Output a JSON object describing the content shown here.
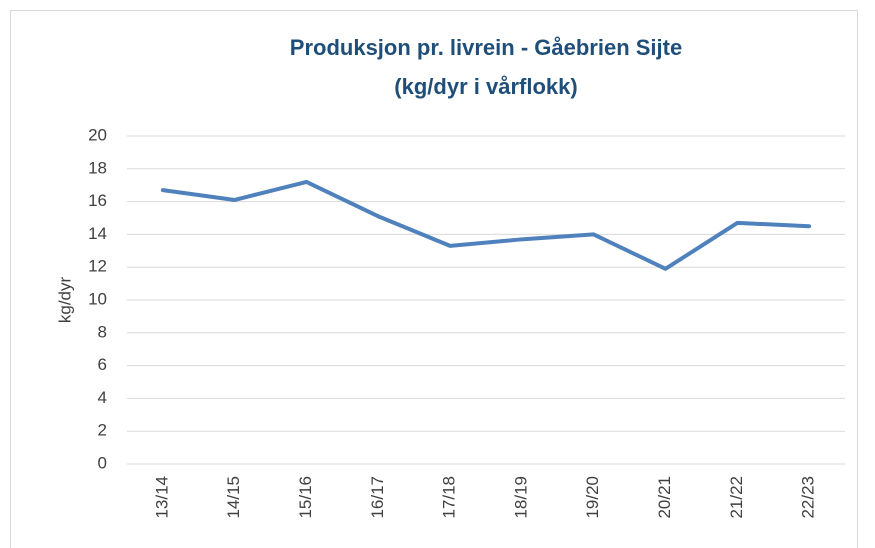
{
  "chart_data": {
    "type": "line",
    "title": "Produksjon pr. livrein - Gåebrien Sijte",
    "subtitle": "(kg/dyr i vårflokk)",
    "y_label": "kg/dyr",
    "categories": [
      "13/14",
      "14/15",
      "15/16",
      "16/17",
      "17/18",
      "18/19",
      "19/20",
      "20/21",
      "21/22",
      "22/23"
    ],
    "series": [
      {
        "name": "kg/dyr",
        "color": "#4f81bd",
        "values": [
          16.7,
          16.1,
          17.2,
          15.1,
          13.3,
          13.7,
          14.0,
          11.9,
          14.7,
          14.5
        ]
      }
    ],
    "ylim": [
      0,
      20
    ],
    "yticks": [
      0,
      2,
      4,
      6,
      8,
      10,
      12,
      14,
      16,
      18,
      20
    ],
    "grid": true
  }
}
